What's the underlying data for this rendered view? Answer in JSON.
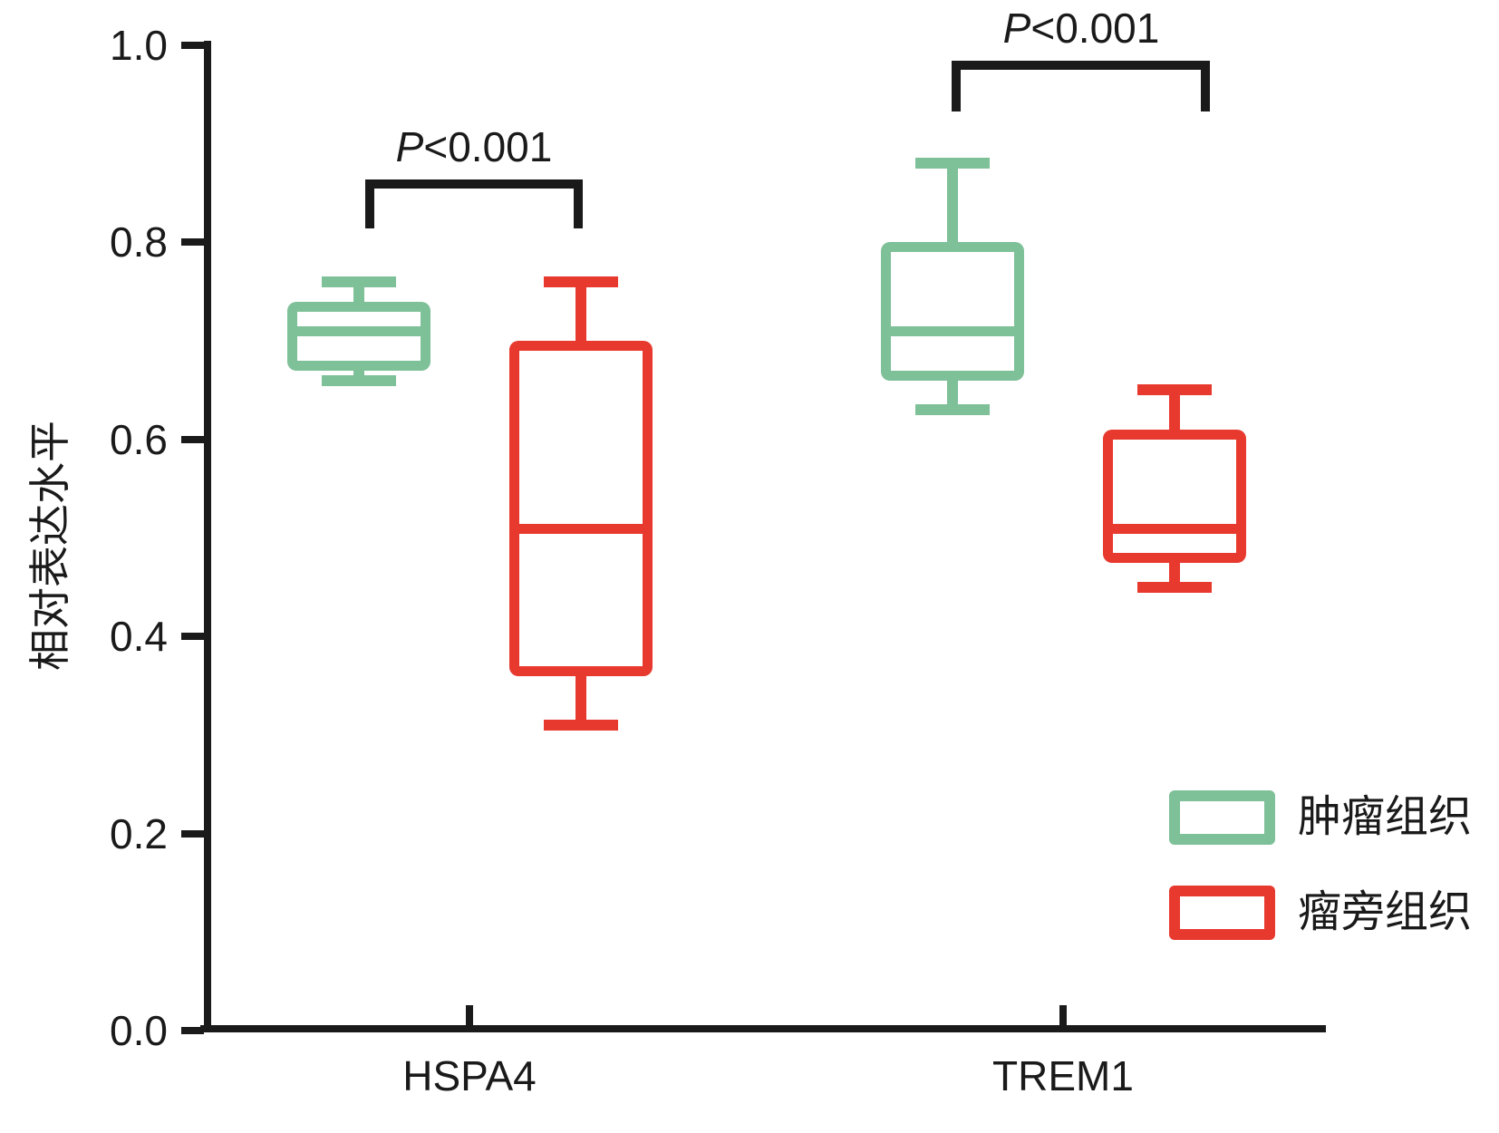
{
  "chart_data": {
    "type": "boxplot",
    "title": "",
    "xlabel": "",
    "ylabel": "相对表达水平",
    "ylim": [
      0.0,
      1.0
    ],
    "y_ticks": [
      "0.0",
      "0.2",
      "0.4",
      "0.6",
      "0.8",
      "1.0"
    ],
    "grid": false,
    "categories": [
      "HSPA4",
      "TREM1"
    ],
    "series": [
      {
        "id": "tumor",
        "name": "肿瘤组织",
        "color": "#7EC098",
        "boxes": [
          {
            "category": "HSPA4",
            "whisker_low": 0.66,
            "q1": 0.67,
            "median": 0.71,
            "q3": 0.74,
            "whisker_high": 0.76
          },
          {
            "category": "TREM1",
            "whisker_low": 0.63,
            "q1": 0.66,
            "median": 0.71,
            "q3": 0.8,
            "whisker_high": 0.88
          }
        ]
      },
      {
        "id": "paratumor",
        "name": "瘤旁组织",
        "color": "#E8392F",
        "boxes": [
          {
            "category": "HSPA4",
            "whisker_low": 0.31,
            "q1": 0.36,
            "median": 0.51,
            "q3": 0.7,
            "whisker_high": 0.76
          },
          {
            "category": "TREM1",
            "whisker_low": 0.45,
            "q1": 0.475,
            "median": 0.51,
            "q3": 0.61,
            "whisker_high": 0.65
          }
        ]
      }
    ],
    "annotations": [
      {
        "category": "HSPA4",
        "label": "P<0.001"
      },
      {
        "category": "TREM1",
        "label": "P<0.001"
      }
    ],
    "legend": [
      {
        "label": "肿瘤组织",
        "color": "#7EC098"
      },
      {
        "label": "瘤旁组织",
        "color": "#E8392F"
      }
    ],
    "legend_position": "lower right"
  }
}
